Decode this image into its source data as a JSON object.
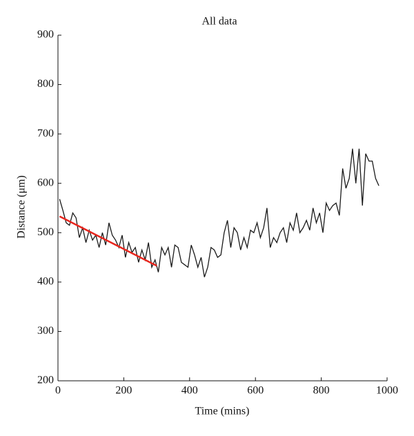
{
  "chart_data": {
    "type": "line",
    "title": "All data",
    "x_label": "Time (mins)",
    "y_label": "Distance (μm)",
    "xlim": [
      0,
      1000
    ],
    "xticks": [
      0,
      200,
      400,
      600,
      800,
      1000
    ],
    "ylim": [
      200,
      900
    ],
    "yticks": [
      200,
      300,
      400,
      500,
      600,
      700,
      800,
      900
    ],
    "series": [
      {
        "color": "#1a1a1a",
        "x": [
          5,
          15,
          25,
          35,
          45,
          55,
          65,
          75,
          85,
          95,
          105,
          115,
          125,
          135,
          145,
          155,
          165,
          175,
          185,
          195,
          205,
          215,
          225,
          235,
          245,
          255,
          265,
          275,
          285,
          295,
          305,
          315,
          325,
          335,
          345,
          355,
          365,
          375,
          385,
          395,
          405,
          415,
          425,
          435,
          445,
          455,
          465,
          475,
          485,
          495,
          505,
          515,
          525,
          535,
          545,
          555,
          565,
          575,
          585,
          595,
          605,
          615,
          625,
          635,
          645,
          655,
          665,
          675,
          685,
          695,
          705,
          715,
          725,
          735,
          745,
          755,
          765,
          775,
          785,
          795,
          805,
          815,
          825,
          835,
          845,
          855,
          865,
          875,
          885,
          895,
          905,
          915,
          925,
          935,
          945,
          955,
          965,
          975
        ],
        "values": [
          568,
          545,
          520,
          515,
          540,
          530,
          490,
          510,
          480,
          505,
          485,
          495,
          470,
          500,
          475,
          520,
          495,
          485,
          470,
          495,
          450,
          480,
          460,
          470,
          440,
          465,
          445,
          480,
          430,
          445,
          420,
          470,
          455,
          470,
          430,
          475,
          470,
          440,
          435,
          430,
          475,
          455,
          430,
          450,
          410,
          430,
          470,
          465,
          450,
          455,
          500,
          525,
          470,
          510,
          500,
          465,
          490,
          470,
          505,
          500,
          520,
          490,
          510,
          550,
          470,
          490,
          480,
          500,
          510,
          480,
          520,
          505,
          540,
          500,
          510,
          525,
          505,
          550,
          520,
          540,
          500,
          560,
          545,
          555,
          560,
          535,
          630,
          590,
          610,
          670,
          600,
          670,
          555,
          660,
          645,
          645,
          610,
          595
        ]
      },
      {
        "color": "#e8261e",
        "x": [
          5,
          300
        ],
        "values": [
          533,
          433
        ]
      }
    ]
  }
}
